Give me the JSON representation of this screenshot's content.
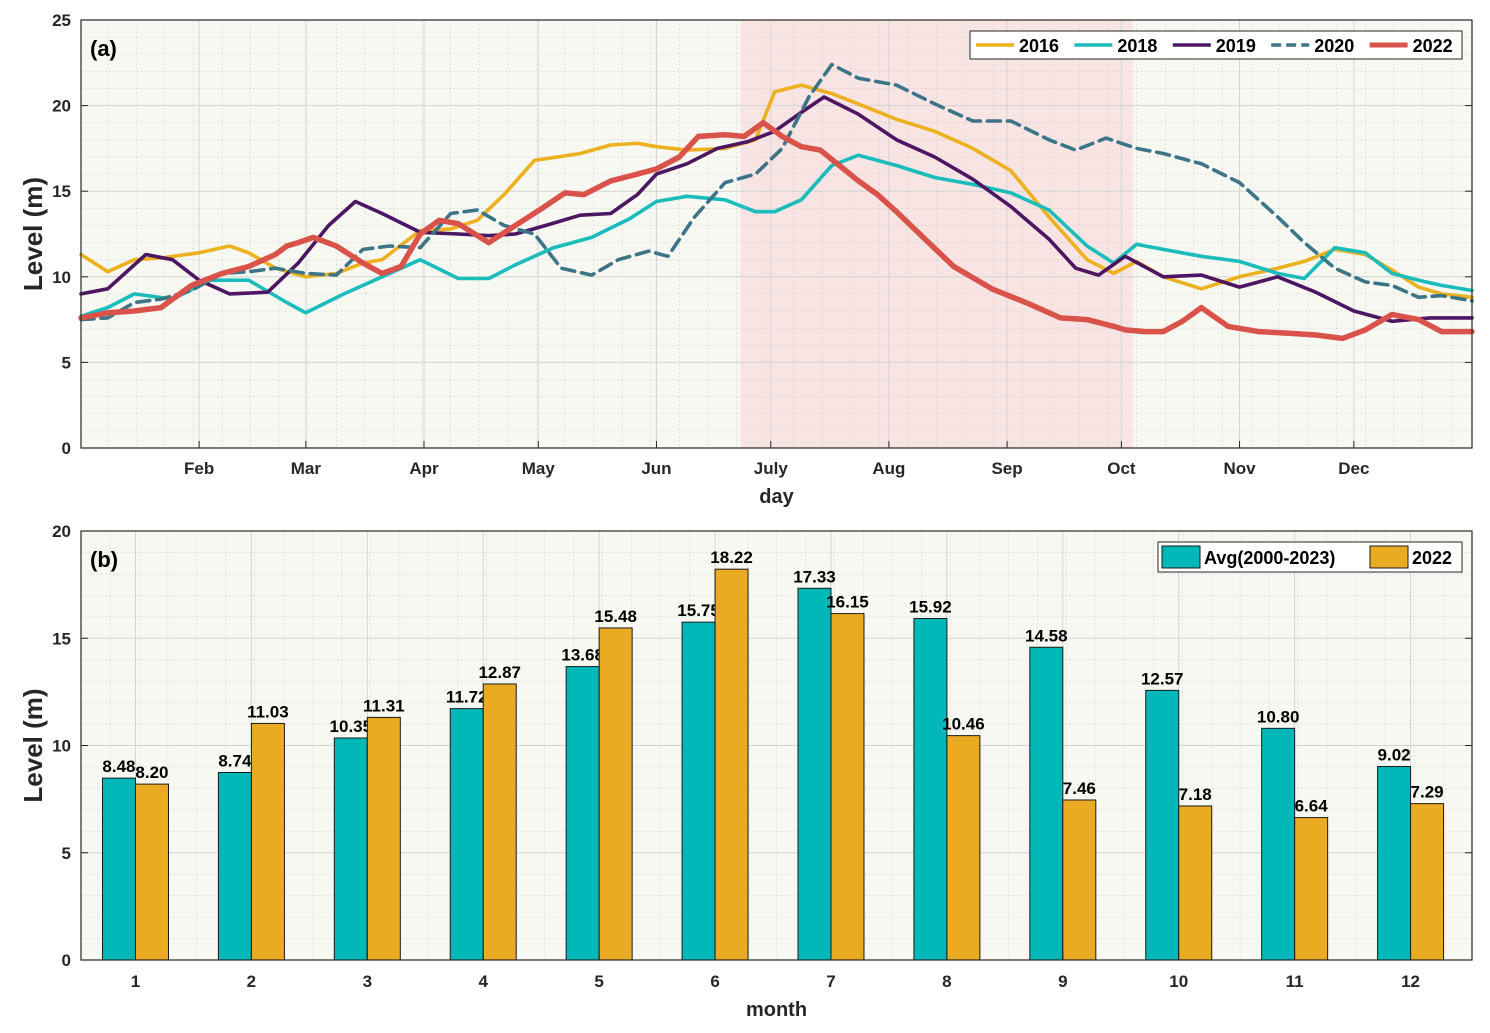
{
  "chart_data": [
    {
      "type": "line",
      "panel_label": "(a)",
      "xlabel": "day",
      "ylabel": "Level (m)",
      "ylim": [
        0,
        25
      ],
      "yticks": [
        0,
        5,
        10,
        15,
        20,
        25
      ],
      "xlim": [
        1,
        366
      ],
      "month_ticks": [
        {
          "day": 32,
          "label": "Feb"
        },
        {
          "day": 60,
          "label": "Mar"
        },
        {
          "day": 91,
          "label": "Apr"
        },
        {
          "day": 121,
          "label": "May"
        },
        {
          "day": 152,
          "label": "Jun"
        },
        {
          "day": 182,
          "label": "July"
        },
        {
          "day": 213,
          "label": "Aug"
        },
        {
          "day": 244,
          "label": "Sep"
        },
        {
          "day": 274,
          "label": "Oct"
        },
        {
          "day": 305,
          "label": "Nov"
        },
        {
          "day": 335,
          "label": "Dec"
        }
      ],
      "shaded_region": {
        "start_day": 174,
        "end_day": 277
      },
      "grid": true,
      "legend_position": "top-right",
      "series": [
        {
          "name": "2016",
          "color": "#EDB120",
          "style": "solid",
          "x": [
            1,
            8,
            15,
            22,
            32,
            40,
            45,
            52,
            60,
            68,
            75,
            80,
            90,
            98,
            105,
            112,
            120,
            126,
            132,
            140,
            147,
            152,
            160,
            170,
            178,
            183,
            190,
            198,
            205,
            215,
            225,
            235,
            245,
            255,
            265,
            272,
            278,
            285,
            295,
            305,
            315,
            322,
            330,
            338,
            345,
            352,
            358,
            366
          ],
          "y": [
            11.3,
            10.3,
            11,
            11.1,
            11.4,
            11.8,
            11.4,
            10.5,
            10,
            10.2,
            10.8,
            11,
            12.7,
            12.8,
            13.3,
            14.8,
            16.8,
            17,
            17.2,
            17.7,
            17.8,
            17.6,
            17.4,
            17.5,
            18,
            20.8,
            21.2,
            20.7,
            20.1,
            19.2,
            18.5,
            17.5,
            16.2,
            13.5,
            11,
            10.2,
            10.9,
            10,
            9.3,
            10,
            10.5,
            10.9,
            11.6,
            11.3,
            10.4,
            9.4,
            9,
            8.8
          ]
        },
        {
          "name": "2018",
          "color": "#1ABCBC",
          "style": "solid",
          "x": [
            1,
            8,
            15,
            25,
            35,
            45,
            55,
            60,
            70,
            80,
            90,
            100,
            108,
            115,
            125,
            135,
            145,
            152,
            160,
            170,
            178,
            183,
            190,
            198,
            205,
            215,
            225,
            235,
            245,
            255,
            265,
            272,
            278,
            285,
            295,
            305,
            315,
            322,
            330,
            338,
            345,
            352,
            358,
            366
          ],
          "y": [
            7.7,
            8.2,
            9,
            8.7,
            9.8,
            9.8,
            8.5,
            7.9,
            9,
            10,
            11,
            9.9,
            9.9,
            10.7,
            11.7,
            12.3,
            13.4,
            14.4,
            14.7,
            14.5,
            13.8,
            13.8,
            14.5,
            16.5,
            17.1,
            16.5,
            15.8,
            15.4,
            14.9,
            13.9,
            11.8,
            10.8,
            11.9,
            11.6,
            11.2,
            10.9,
            10.2,
            9.9,
            11.7,
            11.4,
            10.2,
            9.8,
            9.5,
            9.2
          ]
        },
        {
          "name": "2019",
          "color": "#4C1662",
          "style": "solid",
          "x": [
            1,
            8,
            18,
            25,
            32,
            40,
            50,
            58,
            66,
            73,
            80,
            90,
            100,
            108,
            115,
            123,
            132,
            140,
            147,
            152,
            160,
            168,
            176,
            183,
            190,
            196,
            205,
            215,
            225,
            235,
            245,
            255,
            262,
            268,
            275,
            285,
            295,
            305,
            315,
            325,
            335,
            345,
            355,
            366
          ],
          "y": [
            9,
            9.3,
            11.3,
            11,
            9.8,
            9,
            9.1,
            10.8,
            13,
            14.4,
            13.7,
            12.6,
            12.5,
            12.4,
            12.5,
            13,
            13.6,
            13.7,
            14.8,
            16,
            16.6,
            17.5,
            17.9,
            18.5,
            19.6,
            20.5,
            19.5,
            18,
            17,
            15.7,
            14.1,
            12.2,
            10.5,
            10.1,
            11.2,
            10,
            10.1,
            9.4,
            10,
            9.1,
            8,
            7.4,
            7.6,
            7.6
          ]
        },
        {
          "name": "2020",
          "color": "#3B7587",
          "style": "dashed",
          "x": [
            1,
            8,
            15,
            22,
            30,
            38,
            45,
            52,
            60,
            68,
            75,
            82,
            90,
            98,
            105,
            112,
            120,
            127,
            135,
            142,
            150,
            155,
            162,
            170,
            178,
            185,
            192,
            198,
            205,
            215,
            225,
            235,
            245,
            255,
            262,
            270,
            278,
            285,
            295,
            305,
            315,
            322,
            330,
            338,
            345,
            352,
            358,
            366
          ],
          "y": [
            7.5,
            7.6,
            8.5,
            8.7,
            9.2,
            10.2,
            10.3,
            10.5,
            10.2,
            10.1,
            11.6,
            11.8,
            11.7,
            13.7,
            13.9,
            13,
            12.5,
            10.5,
            10.1,
            11,
            11.5,
            11.2,
            13.5,
            15.5,
            16,
            17.5,
            20.5,
            22.4,
            21.6,
            21.2,
            20.1,
            19.1,
            19.1,
            18,
            17.4,
            18.1,
            17.5,
            17.2,
            16.6,
            15.5,
            13.5,
            12,
            10.5,
            9.7,
            9.5,
            8.8,
            8.9,
            8.6
          ]
        },
        {
          "name": "2022",
          "color": "#D9534A",
          "style": "solid",
          "x": [
            1,
            8,
            15,
            22,
            30,
            38,
            45,
            52,
            55,
            58,
            62,
            68,
            75,
            80,
            85,
            90,
            95,
            100,
            108,
            115,
            122,
            128,
            133,
            140,
            147,
            152,
            158,
            163,
            170,
            175,
            180,
            185,
            190,
            195,
            200,
            205,
            210,
            215,
            222,
            230,
            240,
            250,
            258,
            265,
            272,
            275,
            280,
            285,
            290,
            295,
            302,
            310,
            318,
            325,
            332,
            338,
            345,
            352,
            358,
            366
          ],
          "y": [
            7.6,
            7.9,
            8,
            8.2,
            9.5,
            10.2,
            10.6,
            11.3,
            11.8,
            12,
            12.3,
            11.8,
            10.8,
            10.2,
            10.6,
            12.5,
            13.3,
            13.1,
            12,
            13,
            14,
            14.9,
            14.8,
            15.6,
            16,
            16.3,
            17,
            18.2,
            18.3,
            18.2,
            19,
            18.2,
            17.6,
            17.4,
            16.5,
            15.6,
            14.8,
            13.8,
            12.3,
            10.6,
            9.3,
            8.4,
            7.6,
            7.5,
            7.1,
            6.9,
            6.8,
            6.8,
            7.4,
            8.2,
            7.1,
            6.8,
            6.7,
            6.6,
            6.4,
            6.9,
            7.8,
            7.5,
            6.8,
            6.8
          ]
        }
      ]
    },
    {
      "type": "bar",
      "panel_label": "(b)",
      "xlabel": "month",
      "ylabel": "Level (m)",
      "ylim": [
        0,
        20
      ],
      "yticks": [
        0,
        5,
        10,
        15,
        20
      ],
      "categories": [
        "1",
        "2",
        "3",
        "4",
        "5",
        "6",
        "7",
        "8",
        "9",
        "10",
        "11",
        "12"
      ],
      "grid": true,
      "legend_position": "top-right",
      "series": [
        {
          "name": "Avg(2000-2023)",
          "color": "#00B8B8",
          "values": [
            8.48,
            8.74,
            10.35,
            11.72,
            13.68,
            15.75,
            17.33,
            15.92,
            14.58,
            12.57,
            10.8,
            9.02
          ],
          "labels": [
            "8.48",
            "8.74",
            "10.35",
            "11.72",
            "13.68",
            "15.75",
            "17.33",
            "15.92",
            "14.58",
            "12.57",
            "10.80",
            "9.02"
          ]
        },
        {
          "name": "2022",
          "color": "#EAAA22",
          "values": [
            8.2,
            11.03,
            11.31,
            12.87,
            15.48,
            18.22,
            16.15,
            10.46,
            7.46,
            7.18,
            6.64,
            7.29
          ],
          "labels": [
            "8.20",
            "11.03",
            "11.31",
            "12.87",
            "15.48",
            "18.22",
            "16.15",
            "10.46",
            "7.46",
            "7.18",
            "6.64",
            "7.29"
          ]
        }
      ]
    }
  ]
}
